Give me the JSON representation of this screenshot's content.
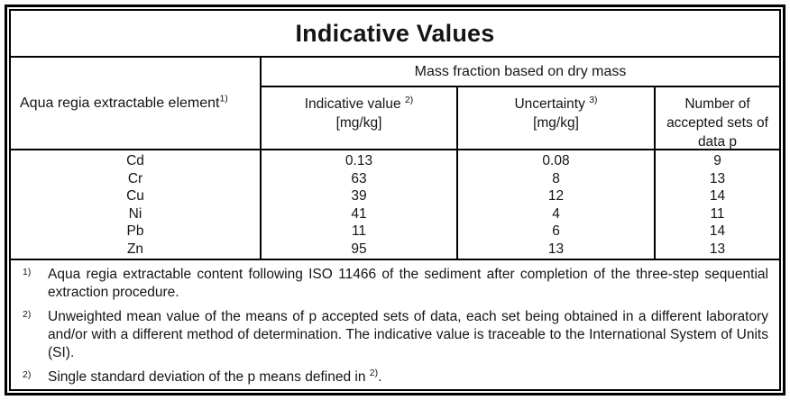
{
  "title": "Indicative Values",
  "table": {
    "row_header_label": "Aqua regia extractable element",
    "row_header_sup": "1)",
    "group_header": "Mass fraction based on dry mass",
    "columns": [
      {
        "label": "Indicative value",
        "sup": "2)",
        "unit": "[mg/kg]"
      },
      {
        "label": "Uncertainty",
        "sup": "3)",
        "unit": "[mg/kg]"
      },
      {
        "label": "Number of accepted sets of data p"
      }
    ],
    "rows": [
      {
        "element": "Cd",
        "indicative_value": "0.13",
        "uncertainty": "0.08",
        "accepted_sets": "9"
      },
      {
        "element": "Cr",
        "indicative_value": "63",
        "uncertainty": "8",
        "accepted_sets": "13"
      },
      {
        "element": "Cu",
        "indicative_value": "39",
        "uncertainty": "12",
        "accepted_sets": "14"
      },
      {
        "element": "Ni",
        "indicative_value": "41",
        "uncertainty": "4",
        "accepted_sets": "11"
      },
      {
        "element": "Pb",
        "indicative_value": "11",
        "uncertainty": "6",
        "accepted_sets": "14"
      },
      {
        "element": "Zn",
        "indicative_value": "95",
        "uncertainty": "13",
        "accepted_sets": "13"
      }
    ]
  },
  "footnotes": [
    {
      "marker": "1)",
      "text": "Aqua regia extractable content following ISO 11466 of the sediment after completion of the three-step sequential extraction procedure."
    },
    {
      "marker": "2)",
      "text": "Unweighted mean value of the means of p accepted sets of data, each set being obtained in a different laboratory and/or with a different method of determination. The indicative value is traceable to the International System of Units (SI)."
    },
    {
      "marker": "2)",
      "text": "Single standard deviation of the p means defined in ",
      "sup": "2)",
      "text_after": "."
    }
  ],
  "colors": {
    "border": "#000000",
    "text": "#151515",
    "background": "#ffffff"
  },
  "chart_data": {
    "type": "table",
    "title": "Indicative Values",
    "group_header": "Mass fraction based on dry mass",
    "columns": [
      "Aqua regia extractable element 1)",
      "Indicative value 2) [mg/kg]",
      "Uncertainty 3) [mg/kg]",
      "Number of accepted sets of data p"
    ],
    "rows": [
      [
        "Cd",
        0.13,
        0.08,
        9
      ],
      [
        "Cr",
        63,
        8,
        13
      ],
      [
        "Cu",
        39,
        12,
        14
      ],
      [
        "Ni",
        41,
        4,
        11
      ],
      [
        "Pb",
        11,
        6,
        14
      ],
      [
        "Zn",
        95,
        13,
        13
      ]
    ]
  }
}
